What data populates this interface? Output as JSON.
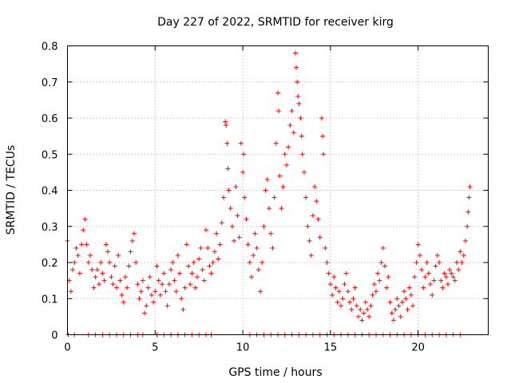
{
  "chart_data": {
    "type": "scatter",
    "title": "Day 227 of 2022, SRMTID for receiver kirg",
    "xlabel": "GPS time / hours",
    "ylabel": "SRMTID / TECUs",
    "xlim": [
      0,
      24
    ],
    "ylim": [
      0,
      0.8
    ],
    "x_ticks": [
      0,
      5,
      10,
      15,
      20
    ],
    "y_ticks": [
      0,
      0.1,
      0.2,
      0.3,
      0.4,
      0.5,
      0.6,
      0.7,
      0.8
    ],
    "x_tick_labels": [
      "0",
      "5",
      "10",
      "15",
      "20"
    ],
    "y_tick_labels": [
      "0",
      "0.1",
      "0.2",
      "0.3",
      "0.4",
      "0.5",
      "0.6",
      "0.7",
      "0.8"
    ],
    "grid": true,
    "marker": "+",
    "colors": {
      "marker": "#ff0000",
      "grid": "#a0a0a0",
      "axis": "#000000"
    },
    "series": [
      {
        "name": "SRMTID",
        "points": [
          [
            0.0,
            0.26
          ],
          [
            0.1,
            0.15
          ],
          [
            0.2,
            0.12
          ],
          [
            0.3,
            0.18
          ],
          [
            0.4,
            0.2
          ],
          [
            0.5,
            0.24
          ],
          [
            0.6,
            0.22
          ],
          [
            0.7,
            0.17
          ],
          [
            0.8,
            0.25
          ],
          [
            0.9,
            0.29
          ],
          [
            1.0,
            0.32
          ],
          [
            1.1,
            0.25
          ],
          [
            1.2,
            0.2
          ],
          [
            1.3,
            0.22
          ],
          [
            1.4,
            0.18
          ],
          [
            1.5,
            0.13
          ],
          [
            1.6,
            0.16
          ],
          [
            1.7,
            0.18
          ],
          [
            1.8,
            0.14
          ],
          [
            1.9,
            0.2
          ],
          [
            2.0,
            0.17
          ],
          [
            2.1,
            0.15
          ],
          [
            2.2,
            0.25
          ],
          [
            2.3,
            0.23
          ],
          [
            2.4,
            0.2
          ],
          [
            2.5,
            0.16
          ],
          [
            2.6,
            0.14
          ],
          [
            2.7,
            0.19
          ],
          [
            2.8,
            0.13
          ],
          [
            2.9,
            0.22
          ],
          [
            3.0,
            0.15
          ],
          [
            3.1,
            0.11
          ],
          [
            3.2,
            0.09
          ],
          [
            3.3,
            0.16
          ],
          [
            3.4,
            0.13
          ],
          [
            3.5,
            0.19
          ],
          [
            3.6,
            0.23
          ],
          [
            3.7,
            0.26
          ],
          [
            3.8,
            0.28
          ],
          [
            3.9,
            0.2
          ],
          [
            4.0,
            0.14
          ],
          [
            4.1,
            0.1
          ],
          [
            4.2,
            0.12
          ],
          [
            4.3,
            0.15
          ],
          [
            4.4,
            0.06
          ],
          [
            4.5,
            0.08
          ],
          [
            4.6,
            0.13
          ],
          [
            4.7,
            0.16
          ],
          [
            4.8,
            0.11
          ],
          [
            4.9,
            0.09
          ],
          [
            5.0,
            0.12
          ],
          [
            5.1,
            0.19
          ],
          [
            5.2,
            0.15
          ],
          [
            5.3,
            0.11
          ],
          [
            5.4,
            0.14
          ],
          [
            5.5,
            0.17
          ],
          [
            5.6,
            0.12
          ],
          [
            5.7,
            0.08
          ],
          [
            5.8,
            0.14
          ],
          [
            5.9,
            0.18
          ],
          [
            6.0,
            0.2
          ],
          [
            6.1,
            0.15
          ],
          [
            6.2,
            0.12
          ],
          [
            6.3,
            0.22
          ],
          [
            6.4,
            0.17
          ],
          [
            6.5,
            0.1
          ],
          [
            6.6,
            0.07
          ],
          [
            6.7,
            0.13
          ],
          [
            6.8,
            0.25
          ],
          [
            6.9,
            0.19
          ],
          [
            7.0,
            0.14
          ],
          [
            7.1,
            0.17
          ],
          [
            7.2,
            0.2
          ],
          [
            7.3,
            0.13
          ],
          [
            7.4,
            0.16
          ],
          [
            7.5,
            0.21
          ],
          [
            7.6,
            0.24
          ],
          [
            7.7,
            0.18
          ],
          [
            7.8,
            0.15
          ],
          [
            7.9,
            0.29
          ],
          [
            8.0,
            0.24
          ],
          [
            8.1,
            0.19
          ],
          [
            8.2,
            0.17
          ],
          [
            8.3,
            0.2
          ],
          [
            8.4,
            0.23
          ],
          [
            8.5,
            0.28
          ],
          [
            8.6,
            0.21
          ],
          [
            8.7,
            0.25
          ],
          [
            8.8,
            0.31
          ],
          [
            8.9,
            0.38
          ],
          [
            9.0,
            0.59
          ],
          [
            9.05,
            0.58
          ],
          [
            9.1,
            0.53
          ],
          [
            9.15,
            0.46
          ],
          [
            9.2,
            0.4
          ],
          [
            9.3,
            0.35
          ],
          [
            9.4,
            0.3
          ],
          [
            9.5,
            0.26
          ],
          [
            9.6,
            0.41
          ],
          [
            9.7,
            0.33
          ],
          [
            9.8,
            0.27
          ],
          [
            9.9,
            0.53
          ],
          [
            10.0,
            0.45
          ],
          [
            10.05,
            0.5
          ],
          [
            10.1,
            0.38
          ],
          [
            10.2,
            0.32
          ],
          [
            10.3,
            0.25
          ],
          [
            10.4,
            0.2
          ],
          [
            10.5,
            0.16
          ],
          [
            10.6,
            0.22
          ],
          [
            10.7,
            0.28
          ],
          [
            10.8,
            0.24
          ],
          [
            10.9,
            0.18
          ],
          [
            11.0,
            0.12
          ],
          [
            11.1,
            0.2
          ],
          [
            11.2,
            0.3
          ],
          [
            11.3,
            0.4
          ],
          [
            11.4,
            0.43
          ],
          [
            11.5,
            0.35
          ],
          [
            11.6,
            0.28
          ],
          [
            11.7,
            0.24
          ],
          [
            11.8,
            0.38
          ],
          [
            11.9,
            0.53
          ],
          [
            12.0,
            0.67
          ],
          [
            12.05,
            0.62
          ],
          [
            12.1,
            0.44
          ],
          [
            12.2,
            0.35
          ],
          [
            12.3,
            0.41
          ],
          [
            12.4,
            0.5
          ],
          [
            12.5,
            0.47
          ],
          [
            12.6,
            0.52
          ],
          [
            12.7,
            0.58
          ],
          [
            12.8,
            0.62
          ],
          [
            12.9,
            0.56
          ],
          [
            13.0,
            0.78
          ],
          [
            13.05,
            0.74
          ],
          [
            13.1,
            0.7
          ],
          [
            13.15,
            0.66
          ],
          [
            13.2,
            0.64
          ],
          [
            13.3,
            0.6
          ],
          [
            13.35,
            0.55
          ],
          [
            13.4,
            0.5
          ],
          [
            13.5,
            0.45
          ],
          [
            13.6,
            0.38
          ],
          [
            13.7,
            0.3
          ],
          [
            13.8,
            0.26
          ],
          [
            13.9,
            0.22
          ],
          [
            14.0,
            0.33
          ],
          [
            14.1,
            0.41
          ],
          [
            14.2,
            0.37
          ],
          [
            14.3,
            0.32
          ],
          [
            14.4,
            0.27
          ],
          [
            14.5,
            0.6
          ],
          [
            14.55,
            0.55
          ],
          [
            14.6,
            0.5
          ],
          [
            14.7,
            0.24
          ],
          [
            14.8,
            0.2
          ],
          [
            14.9,
            0.17
          ],
          [
            15.0,
            0.14
          ],
          [
            15.1,
            0.11
          ],
          [
            15.2,
            0.16
          ],
          [
            15.3,
            0.13
          ],
          [
            15.4,
            0.09
          ],
          [
            15.5,
            0.12
          ],
          [
            15.6,
            0.08
          ],
          [
            15.7,
            0.1
          ],
          [
            15.8,
            0.14
          ],
          [
            15.9,
            0.17
          ],
          [
            16.0,
            0.12
          ],
          [
            16.1,
            0.09
          ],
          [
            16.2,
            0.07
          ],
          [
            16.3,
            0.1
          ],
          [
            16.4,
            0.13
          ],
          [
            16.5,
            0.08
          ],
          [
            16.6,
            0.05
          ],
          [
            16.7,
            0.07
          ],
          [
            16.8,
            0.04
          ],
          [
            16.9,
            0.06
          ],
          [
            17.0,
            0.09
          ],
          [
            17.1,
            0.07
          ],
          [
            17.2,
            0.05
          ],
          [
            17.3,
            0.08
          ],
          [
            17.4,
            0.11
          ],
          [
            17.5,
            0.14
          ],
          [
            17.6,
            0.12
          ],
          [
            17.7,
            0.17
          ],
          [
            17.8,
            0.15
          ],
          [
            17.9,
            0.2
          ],
          [
            18.0,
            0.24
          ],
          [
            18.1,
            0.19
          ],
          [
            18.2,
            0.13
          ],
          [
            18.3,
            0.16
          ],
          [
            18.4,
            0.09
          ],
          [
            18.5,
            0.06
          ],
          [
            18.6,
            0.04
          ],
          [
            18.7,
            0.07
          ],
          [
            18.8,
            0.1
          ],
          [
            18.9,
            0.08
          ],
          [
            19.0,
            0.05
          ],
          [
            19.1,
            0.09
          ],
          [
            19.2,
            0.12
          ],
          [
            19.3,
            0.1
          ],
          [
            19.4,
            0.07
          ],
          [
            19.5,
            0.13
          ],
          [
            19.6,
            0.11
          ],
          [
            19.7,
            0.08
          ],
          [
            19.8,
            0.16
          ],
          [
            19.9,
            0.2
          ],
          [
            20.0,
            0.25
          ],
          [
            20.1,
            0.22
          ],
          [
            20.2,
            0.18
          ],
          [
            20.3,
            0.13
          ],
          [
            20.4,
            0.16
          ],
          [
            20.5,
            0.2
          ],
          [
            20.6,
            0.17
          ],
          [
            20.7,
            0.14
          ],
          [
            20.8,
            0.11
          ],
          [
            20.9,
            0.15
          ],
          [
            21.0,
            0.19
          ],
          [
            21.1,
            0.22
          ],
          [
            21.2,
            0.2
          ],
          [
            21.3,
            0.15
          ],
          [
            21.4,
            0.13
          ],
          [
            21.5,
            0.17
          ],
          [
            21.6,
            0.16
          ],
          [
            21.7,
            0.14
          ],
          [
            21.8,
            0.18
          ],
          [
            21.9,
            0.17
          ],
          [
            22.0,
            0.16
          ],
          [
            22.1,
            0.15
          ],
          [
            22.2,
            0.2
          ],
          [
            22.3,
            0.18
          ],
          [
            22.4,
            0.23
          ],
          [
            22.5,
            0.2
          ],
          [
            22.6,
            0.22
          ],
          [
            22.7,
            0.26
          ],
          [
            22.8,
            0.3
          ],
          [
            22.85,
            0.34
          ],
          [
            22.9,
            0.38
          ],
          [
            22.95,
            0.41
          ],
          [
            0.05,
            0.0
          ],
          [
            0.4,
            0.0
          ],
          [
            1.2,
            0.0
          ],
          [
            1.6,
            0.0
          ],
          [
            2.0,
            0.0
          ],
          [
            2.4,
            0.0
          ],
          [
            2.8,
            0.0
          ],
          [
            3.2,
            0.0
          ],
          [
            3.6,
            0.0
          ],
          [
            4.0,
            0.0
          ],
          [
            4.3,
            0.0
          ],
          [
            5.1,
            0.0
          ],
          [
            5.5,
            0.0
          ],
          [
            5.9,
            0.0
          ],
          [
            6.3,
            0.0
          ],
          [
            6.7,
            0.0
          ],
          [
            7.1,
            0.0
          ],
          [
            7.5,
            0.0
          ],
          [
            7.9,
            0.0
          ],
          [
            8.2,
            0.0
          ],
          [
            10.4,
            0.0
          ],
          [
            10.8,
            0.0
          ],
          [
            11.2,
            0.0
          ],
          [
            11.6,
            0.0
          ],
          [
            12.0,
            0.0
          ],
          [
            12.4,
            0.0
          ],
          [
            12.8,
            0.0
          ],
          [
            13.2,
            0.0
          ],
          [
            13.6,
            0.0
          ],
          [
            14.0,
            0.0
          ],
          [
            14.4,
            0.0
          ],
          [
            14.8,
            0.0
          ],
          [
            15.2,
            0.0
          ],
          [
            15.6,
            0.0
          ],
          [
            16.0,
            0.0
          ],
          [
            16.4,
            0.0
          ],
          [
            16.8,
            0.0
          ],
          [
            17.2,
            0.0
          ],
          [
            17.6,
            0.0
          ],
          [
            18.0,
            0.0
          ],
          [
            18.4,
            0.0
          ],
          [
            18.8,
            0.0
          ],
          [
            19.2,
            0.0
          ],
          [
            19.6,
            0.0
          ],
          [
            20.0,
            0.0
          ],
          [
            20.4,
            0.0
          ],
          [
            20.8,
            0.0
          ],
          [
            21.2,
            0.0
          ],
          [
            21.6,
            0.0
          ],
          [
            22.0,
            0.0
          ],
          [
            22.4,
            0.0
          ]
        ]
      }
    ]
  }
}
